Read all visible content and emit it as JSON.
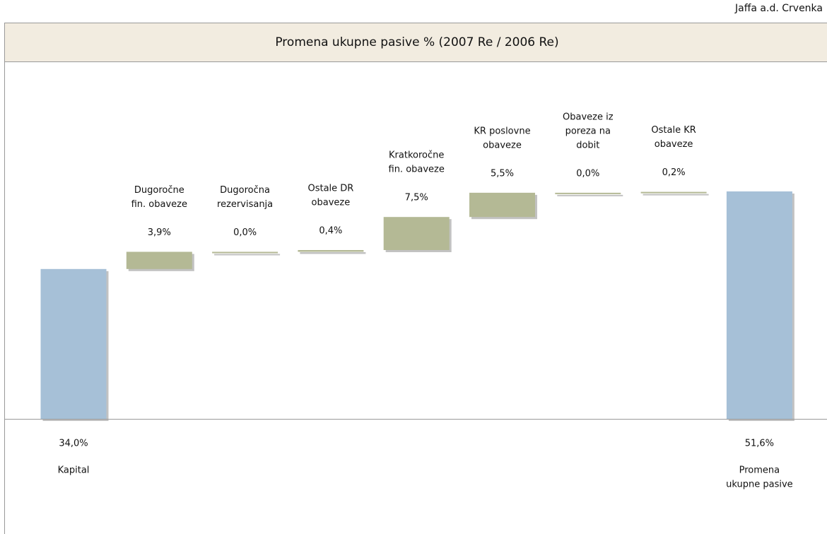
{
  "company": "Jaffa a.d. Crvenka",
  "chart_data": {
    "type": "waterfall",
    "title": "Promena ukupne pasive % (2007 Re / 2006 Re)",
    "categories": [
      [
        "Kapital"
      ],
      [
        "Dugoročne",
        "fin. obaveze"
      ],
      [
        "Dugoročna",
        "rezervisanja"
      ],
      [
        "Ostale DR",
        "obaveze"
      ],
      [
        "Kratkoročne",
        "fin. obaveze"
      ],
      [
        "KR poslovne",
        "obaveze"
      ],
      [
        "Obaveze iz",
        "poreza na",
        "dobit"
      ],
      [
        "Ostale KR",
        "obaveze"
      ],
      [
        "Promena",
        "ukupne pasive"
      ]
    ],
    "values": [
      34.0,
      3.9,
      0.0,
      0.4,
      7.5,
      5.5,
      0.0,
      0.2,
      51.6
    ],
    "value_labels": [
      "34,0%",
      "3,9%",
      "0,0%",
      "0,4%",
      "7,5%",
      "5,5%",
      "0,0%",
      "0,2%",
      "51,6%"
    ],
    "color": "#b4b995",
    "total_color": "#a6c0d7"
  }
}
